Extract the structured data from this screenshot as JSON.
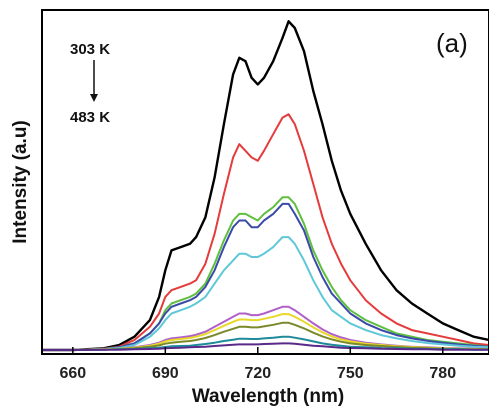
{
  "chart_data": {
    "type": "line",
    "title": "",
    "panel_label": "(a)",
    "xlabel": "Wavelength (nm)",
    "ylabel": "Intensity (a.u)",
    "xlim": [
      650,
      795
    ],
    "ylim": [
      0,
      1.0
    ],
    "xticks": [
      660,
      690,
      720,
      750,
      780
    ],
    "yticks_shown": false,
    "grid": false,
    "legend": "none",
    "annotation_top": "303 K",
    "annotation_bottom": "483 K",
    "x": [
      650,
      660,
      670,
      675,
      680,
      685,
      688,
      690,
      692,
      695,
      698,
      700,
      703,
      706,
      709,
      712,
      714,
      716,
      718,
      720,
      722,
      725,
      728,
      730,
      732,
      735,
      738,
      741,
      744,
      747,
      750,
      755,
      760,
      765,
      770,
      775,
      780,
      785,
      790,
      795
    ],
    "series": [
      {
        "color": "#000000",
        "values": [
          0,
          0,
          0.005,
          0.015,
          0.04,
          0.09,
          0.16,
          0.24,
          0.3,
          0.31,
          0.32,
          0.34,
          0.4,
          0.52,
          0.68,
          0.83,
          0.88,
          0.87,
          0.82,
          0.8,
          0.82,
          0.87,
          0.94,
          0.99,
          0.97,
          0.9,
          0.78,
          0.68,
          0.57,
          0.48,
          0.41,
          0.32,
          0.24,
          0.18,
          0.14,
          0.11,
          0.08,
          0.06,
          0.04,
          0.03
        ]
      },
      {
        "color": "#e53b3b",
        "values": [
          0,
          0,
          0.004,
          0.01,
          0.03,
          0.07,
          0.11,
          0.16,
          0.18,
          0.19,
          0.2,
          0.21,
          0.26,
          0.35,
          0.47,
          0.58,
          0.62,
          0.6,
          0.58,
          0.57,
          0.6,
          0.65,
          0.7,
          0.71,
          0.68,
          0.6,
          0.5,
          0.4,
          0.32,
          0.26,
          0.21,
          0.15,
          0.11,
          0.08,
          0.06,
          0.05,
          0.04,
          0.03,
          0.02,
          0.015
        ]
      },
      {
        "color": "#5fbf3f",
        "values": [
          0,
          0,
          0.003,
          0.008,
          0.02,
          0.05,
          0.08,
          0.12,
          0.14,
          0.15,
          0.16,
          0.17,
          0.2,
          0.26,
          0.33,
          0.39,
          0.41,
          0.41,
          0.4,
          0.39,
          0.41,
          0.43,
          0.46,
          0.46,
          0.44,
          0.38,
          0.3,
          0.24,
          0.19,
          0.15,
          0.12,
          0.09,
          0.07,
          0.05,
          0.04,
          0.03,
          0.025,
          0.02,
          0.015,
          0.01
        ]
      },
      {
        "color": "#3a4aa8",
        "values": [
          0,
          0,
          0.003,
          0.008,
          0.02,
          0.05,
          0.08,
          0.11,
          0.13,
          0.14,
          0.15,
          0.16,
          0.19,
          0.24,
          0.31,
          0.37,
          0.39,
          0.39,
          0.37,
          0.37,
          0.39,
          0.41,
          0.44,
          0.44,
          0.41,
          0.36,
          0.28,
          0.22,
          0.17,
          0.14,
          0.11,
          0.08,
          0.06,
          0.045,
          0.035,
          0.028,
          0.022,
          0.017,
          0.013,
          0.01
        ]
      },
      {
        "color": "#5fc8d8",
        "values": [
          0,
          0,
          0.003,
          0.006,
          0.015,
          0.04,
          0.065,
          0.09,
          0.11,
          0.12,
          0.13,
          0.14,
          0.16,
          0.2,
          0.24,
          0.27,
          0.29,
          0.29,
          0.28,
          0.28,
          0.29,
          0.31,
          0.34,
          0.34,
          0.32,
          0.27,
          0.21,
          0.16,
          0.12,
          0.1,
          0.08,
          0.06,
          0.045,
          0.035,
          0.027,
          0.021,
          0.017,
          0.013,
          0.01,
          0.008
        ]
      },
      {
        "color": "#b060c8",
        "values": [
          0,
          0,
          0.002,
          0.004,
          0.008,
          0.015,
          0.022,
          0.03,
          0.035,
          0.038,
          0.042,
          0.046,
          0.055,
          0.07,
          0.085,
          0.1,
          0.11,
          0.11,
          0.105,
          0.105,
          0.11,
          0.12,
          0.13,
          0.13,
          0.12,
          0.1,
          0.08,
          0.062,
          0.048,
          0.038,
          0.03,
          0.022,
          0.017,
          0.013,
          0.01,
          0.008,
          0.006,
          0.005,
          0.004,
          0.003
        ]
      },
      {
        "color": "#e8d82a",
        "values": [
          0,
          0,
          0.002,
          0.004,
          0.007,
          0.013,
          0.019,
          0.026,
          0.03,
          0.033,
          0.036,
          0.04,
          0.048,
          0.06,
          0.073,
          0.085,
          0.092,
          0.092,
          0.09,
          0.09,
          0.094,
          0.1,
          0.108,
          0.108,
          0.1,
          0.085,
          0.068,
          0.053,
          0.041,
          0.032,
          0.026,
          0.019,
          0.015,
          0.011,
          0.009,
          0.007,
          0.005,
          0.004,
          0.003,
          0.002
        ]
      },
      {
        "color": "#7a8a2a",
        "values": [
          0,
          0,
          0.001,
          0.003,
          0.005,
          0.01,
          0.014,
          0.019,
          0.022,
          0.025,
          0.027,
          0.03,
          0.036,
          0.045,
          0.055,
          0.064,
          0.07,
          0.07,
          0.068,
          0.068,
          0.071,
          0.076,
          0.082,
          0.082,
          0.076,
          0.065,
          0.052,
          0.041,
          0.032,
          0.025,
          0.02,
          0.015,
          0.012,
          0.009,
          0.007,
          0.005,
          0.004,
          0.003,
          0.002,
          0.002
        ]
      },
      {
        "color": "#1f8a9a",
        "values": [
          0,
          0,
          0.001,
          0.002,
          0.003,
          0.005,
          0.007,
          0.009,
          0.011,
          0.012,
          0.013,
          0.015,
          0.018,
          0.022,
          0.027,
          0.031,
          0.034,
          0.034,
          0.033,
          0.033,
          0.035,
          0.037,
          0.04,
          0.04,
          0.037,
          0.032,
          0.026,
          0.02,
          0.016,
          0.013,
          0.01,
          0.008,
          0.006,
          0.005,
          0.004,
          0.003,
          0.002,
          0.002,
          0.001,
          0.001
        ]
      },
      {
        "color": "#5a2a8a",
        "values": [
          0,
          0,
          0.001,
          0.001,
          0.002,
          0.003,
          0.004,
          0.005,
          0.006,
          0.007,
          0.008,
          0.009,
          0.01,
          0.012,
          0.014,
          0.016,
          0.017,
          0.017,
          0.017,
          0.017,
          0.018,
          0.019,
          0.02,
          0.02,
          0.019,
          0.016,
          0.013,
          0.011,
          0.009,
          0.007,
          0.006,
          0.005,
          0.004,
          0.003,
          0.002,
          0.002,
          0.001,
          0.001,
          0.001,
          0.001
        ]
      }
    ]
  }
}
